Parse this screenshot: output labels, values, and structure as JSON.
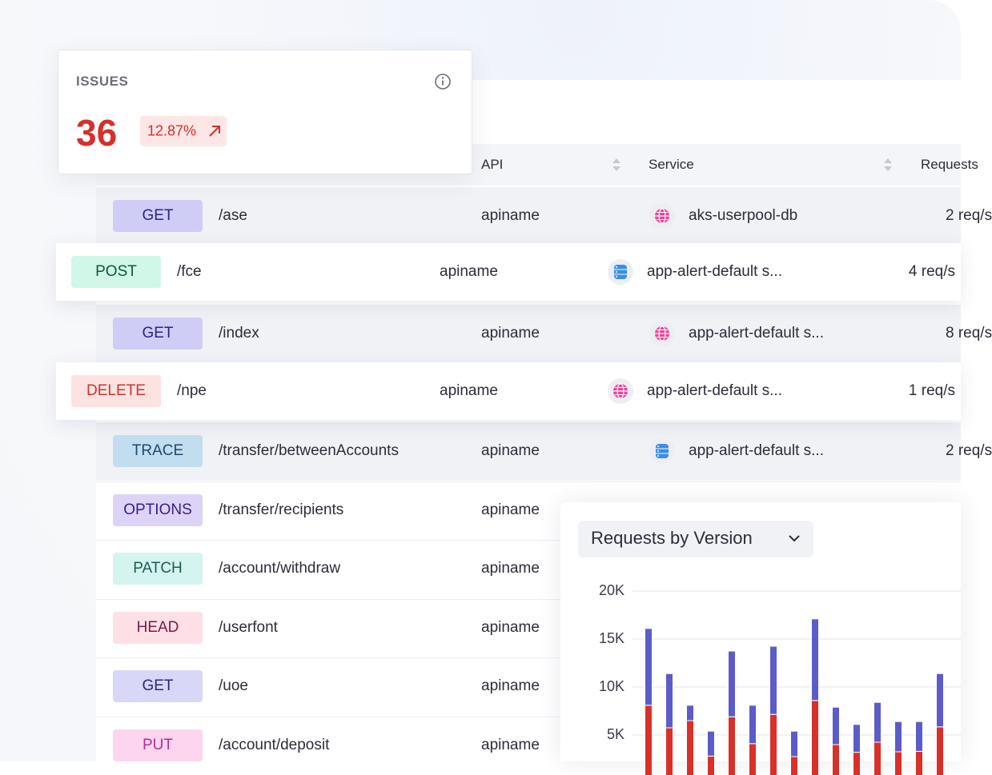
{
  "issues_card": {
    "title": "ISSUES",
    "count": 36,
    "change": "12.87%"
  },
  "table": {
    "columns": [
      "API",
      "Service",
      "Requests"
    ],
    "rows": [
      {
        "method": "GET",
        "path": "/ase",
        "api": "apiname",
        "service": "aks-userpool-db",
        "requests": "2 req/s"
      },
      {
        "method": "POST",
        "path": "/fce",
        "api": "apiname",
        "service": "app-alert-default s...",
        "requests": "4 req/s"
      },
      {
        "method": "GET",
        "path": "/index",
        "api": "apiname",
        "service": "app-alert-default s...",
        "requests": "8 req/s"
      },
      {
        "method": "DELETE",
        "path": "/npe",
        "api": "apiname",
        "service": "app-alert-default s...",
        "requests": "1 req/s"
      },
      {
        "method": "TRACE",
        "path": "/transfer/betweenAccounts",
        "api": "apiname",
        "service": "app-alert-default s...",
        "requests": "2 req/s"
      },
      {
        "method": "OPTIONS",
        "path": "/transfer/recipients",
        "api": "apiname"
      },
      {
        "method": "PATCH",
        "path": "/account/withdraw",
        "api": "apiname"
      },
      {
        "method": "HEAD",
        "path": "/userfont",
        "api": "apiname"
      },
      {
        "method": "GET",
        "path": "/uoe",
        "api": "apiname"
      },
      {
        "method": "PUT",
        "path": "/account/deposit",
        "api": "apiname"
      }
    ]
  },
  "chart_data": {
    "type": "bar",
    "stacked": true,
    "title": "Requests by Version",
    "ylim": [
      0,
      20000
    ],
    "yticks": [
      {
        "value": 5000,
        "label": "5K"
      },
      {
        "value": 10000,
        "label": "10K"
      },
      {
        "value": 15000,
        "label": "15K"
      },
      {
        "value": 20000,
        "label": "20K"
      }
    ],
    "grid": true,
    "series": [
      {
        "color": "#d9302a",
        "values": [
          8100,
          5750,
          6500,
          2800,
          6900,
          4100,
          7150,
          2750,
          8600,
          4000,
          3200,
          4250,
          3250,
          3300,
          5850
        ]
      },
      {
        "color": "#5c5cc9",
        "values": [
          8000,
          5650,
          1600,
          2600,
          6850,
          4000,
          7100,
          2650,
          8500,
          3900,
          2900,
          4150,
          3150,
          3100,
          5550
        ]
      }
    ]
  }
}
